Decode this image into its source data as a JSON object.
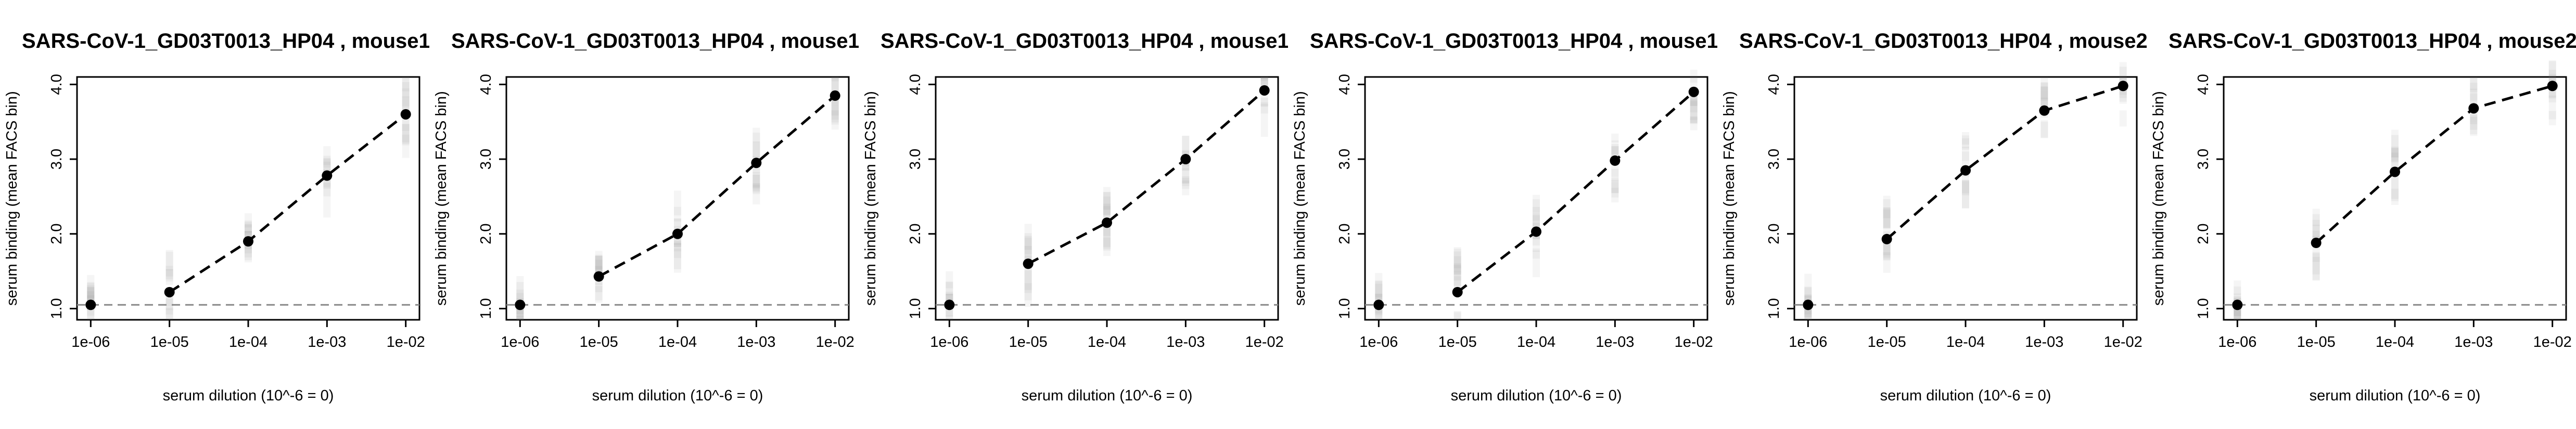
{
  "chart_data": [
    {
      "type": "line",
      "title": "SARS-CoV-1_GD03T0013_HP04 , mouse1",
      "xlabel": "serum dilution (10^-6 = 0)",
      "ylabel": "serum binding (mean FACS bin)",
      "x_ticks": [
        "1e-06",
        "1e-05",
        "1e-04",
        "1e-03",
        "1e-02"
      ],
      "y_ticks": [
        "1.0",
        "2.0",
        "3.0",
        "4.0"
      ],
      "ylim": [
        0.85,
        4.1
      ],
      "baseline": 1.05,
      "series": [
        {
          "x": [
            "1e-06",
            "1e-05",
            "1e-04",
            "1e-03",
            "1e-02"
          ],
          "values": [
            1.05,
            1.22,
            1.9,
            2.78,
            3.6
          ]
        }
      ],
      "connected_from": "1e-05"
    },
    {
      "type": "line",
      "title": "SARS-CoV-1_GD03T0013_HP04 , mouse1",
      "xlabel": "serum dilution (10^-6 = 0)",
      "ylabel": "serum binding (mean FACS bin)",
      "x_ticks": [
        "1e-06",
        "1e-05",
        "1e-04",
        "1e-03",
        "1e-02"
      ],
      "y_ticks": [
        "1.0",
        "2.0",
        "3.0",
        "4.0"
      ],
      "ylim": [
        0.85,
        4.1
      ],
      "baseline": 1.05,
      "series": [
        {
          "x": [
            "1e-06",
            "1e-05",
            "1e-04",
            "1e-03",
            "1e-02"
          ],
          "values": [
            1.05,
            1.43,
            2.0,
            2.95,
            3.85
          ]
        }
      ],
      "connected_from": "1e-05"
    },
    {
      "type": "line",
      "title": "SARS-CoV-1_GD03T0013_HP04 , mouse1",
      "xlabel": "serum dilution (10^-6 = 0)",
      "ylabel": "serum binding (mean FACS bin)",
      "x_ticks": [
        "1e-06",
        "1e-05",
        "1e-04",
        "1e-03",
        "1e-02"
      ],
      "y_ticks": [
        "1.0",
        "2.0",
        "3.0",
        "4.0"
      ],
      "ylim": [
        0.85,
        4.1
      ],
      "baseline": 1.05,
      "series": [
        {
          "x": [
            "1e-06",
            "1e-05",
            "1e-04",
            "1e-03",
            "1e-02"
          ],
          "values": [
            1.05,
            1.6,
            2.15,
            3.0,
            3.92
          ]
        }
      ],
      "connected_from": "1e-05"
    },
    {
      "type": "line",
      "title": "SARS-CoV-1_GD03T0013_HP04 , mouse1",
      "xlabel": "serum dilution (10^-6 = 0)",
      "ylabel": "serum binding (mean FACS bin)",
      "x_ticks": [
        "1e-06",
        "1e-05",
        "1e-04",
        "1e-03",
        "1e-02"
      ],
      "y_ticks": [
        "1.0",
        "2.0",
        "3.0",
        "4.0"
      ],
      "ylim": [
        0.85,
        4.1
      ],
      "baseline": 1.05,
      "series": [
        {
          "x": [
            "1e-06",
            "1e-05",
            "1e-04",
            "1e-03",
            "1e-02"
          ],
          "values": [
            1.05,
            1.22,
            2.03,
            2.98,
            3.9
          ]
        }
      ],
      "connected_from": "1e-05"
    },
    {
      "type": "line",
      "title": "SARS-CoV-1_GD03T0013_HP04 , mouse2",
      "xlabel": "serum dilution (10^-6 = 0)",
      "ylabel": "serum binding (mean FACS bin)",
      "x_ticks": [
        "1e-06",
        "1e-05",
        "1e-04",
        "1e-03",
        "1e-02"
      ],
      "y_ticks": [
        "1.0",
        "2.0",
        "3.0",
        "4.0"
      ],
      "ylim": [
        0.85,
        4.1
      ],
      "baseline": 1.05,
      "series": [
        {
          "x": [
            "1e-06",
            "1e-05",
            "1e-04",
            "1e-03",
            "1e-02"
          ],
          "values": [
            1.05,
            1.93,
            2.85,
            3.65,
            3.98
          ]
        }
      ],
      "connected_from": "1e-05"
    },
    {
      "type": "line",
      "title": "SARS-CoV-1_GD03T0013_HP04 , mouse2",
      "xlabel": "serum dilution (10^-6 = 0)",
      "ylabel": "serum binding (mean FACS bin)",
      "x_ticks": [
        "1e-06",
        "1e-05",
        "1e-04",
        "1e-03",
        "1e-02"
      ],
      "y_ticks": [
        "1.0",
        "2.0",
        "3.0",
        "4.0"
      ],
      "ylim": [
        0.85,
        4.1
      ],
      "baseline": 1.05,
      "series": [
        {
          "x": [
            "1e-06",
            "1e-05",
            "1e-04",
            "1e-03",
            "1e-02"
          ],
          "values": [
            1.05,
            1.88,
            2.83,
            3.68,
            3.98
          ]
        }
      ],
      "connected_from": "1e-05"
    }
  ],
  "colors": {
    "line": "#000000",
    "point": "#000000",
    "baseline": "#888888",
    "haze": "#777777"
  }
}
